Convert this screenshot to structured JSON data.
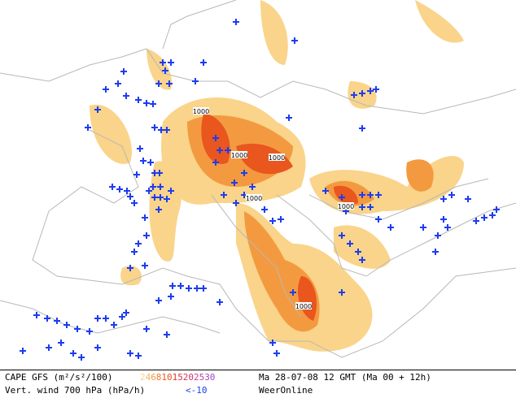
{
  "map": {
    "contour_labels": [
      "1000",
      "1000",
      "1000",
      "1000",
      "1000",
      "1000"
    ]
  },
  "footer": {
    "cape_label": "CAPE GFS (m²/s²/100)",
    "cape_scale": [
      {
        "value": 2,
        "color": "#f9d48a"
      },
      {
        "value": 4,
        "color": "#f6b45c"
      },
      {
        "value": 6,
        "color": "#f39a40"
      },
      {
        "value": 8,
        "color": "#ef7c2c"
      },
      {
        "value": 10,
        "color": "#e9561e"
      },
      {
        "value": 15,
        "color": "#e23434"
      },
      {
        "value": 20,
        "color": "#d43468"
      },
      {
        "value": 25,
        "color": "#c2409c"
      },
      {
        "value": 30,
        "color": "#a048c4"
      }
    ],
    "date": "Ma 28-07-08 12 GMT (Ma 00 + 12h)",
    "wind_label": "Vert. wind 700 hPa (hPa/h)",
    "wind_threshold": "<-10",
    "source": "WeerOnline"
  }
}
